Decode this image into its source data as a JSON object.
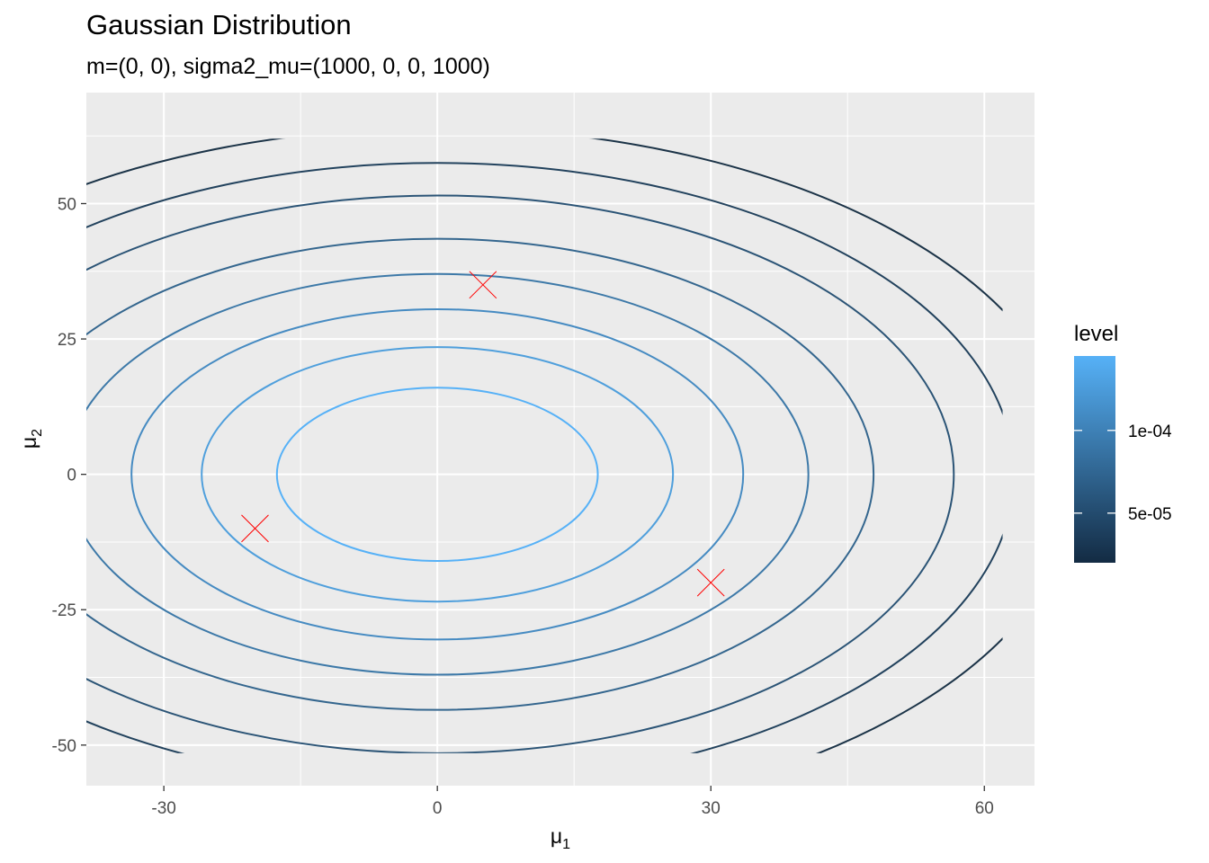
{
  "chart_data": {
    "type": "contour",
    "title": "Gaussian Distribution",
    "subtitle": "m=(0, 0), sigma2_mu=(1000, 0, 0, 1000)",
    "xlabel": "μ",
    "xlabel_sub": "1",
    "ylabel": "μ",
    "ylabel_sub": "2",
    "xlim": [
      -38.5,
      65.5
    ],
    "ylim": [
      -57.5,
      70.5
    ],
    "x_ticks": [
      -30,
      0,
      30,
      60
    ],
    "y_ticks": [
      -50,
      -25,
      0,
      25,
      50
    ],
    "x_tick_labels": [
      "-30",
      "0",
      "30",
      "60"
    ],
    "y_tick_labels": [
      "-50",
      "-25",
      "0",
      "25",
      "50"
    ],
    "x_minor": [
      -45,
      -15,
      15,
      45
    ],
    "y_minor": [
      -37.5,
      -12.5,
      12.5,
      37.5,
      62.5
    ],
    "data_window": {
      "x": [
        -51,
        62
      ],
      "y": [
        -51.5,
        62
      ]
    },
    "center": [
      0,
      0
    ],
    "aspect": 1.1,
    "contour_radii": [
      16,
      23.5,
      30.5,
      37,
      43.5,
      51.5,
      57.5,
      64
    ],
    "contour_colors": [
      "#56b1f7",
      "#4f9fdc",
      "#468bc2",
      "#3d79a8",
      "#34668e",
      "#2b5476",
      "#22425d",
      "#1b3347"
    ],
    "points": [
      {
        "x": 5,
        "y": 35
      },
      {
        "x": -20,
        "y": -10
      },
      {
        "x": 30,
        "y": -20
      }
    ],
    "point_color": "#ff0000",
    "grid": true,
    "panel_background": "#ebebeb",
    "legend": {
      "title": "level",
      "position": "right",
      "breaks": [
        5e-05,
        0.0001
      ],
      "labels": [
        "5e-05",
        "1e-04"
      ],
      "range": [
        2e-05,
        0.000145
      ],
      "color_low": "#132b43",
      "color_high": "#56b1f7"
    }
  }
}
